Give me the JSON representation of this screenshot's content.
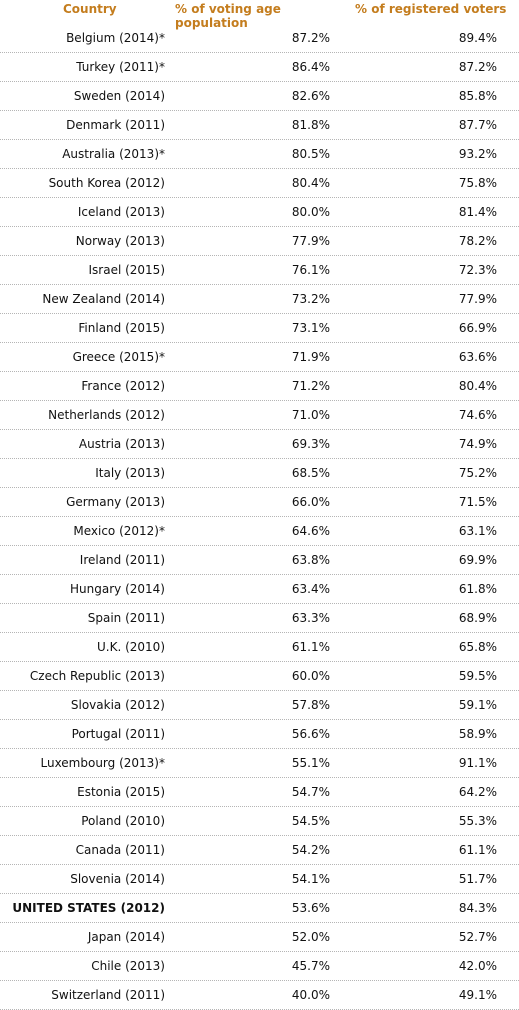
{
  "table": {
    "headers": {
      "country": "Country",
      "vap": "% of voting age population",
      "registered": "% of registered voters"
    },
    "rows": [
      {
        "country": "Belgium (2014)*",
        "vap": "87.2%",
        "registered": "89.4%"
      },
      {
        "country": "Turkey (2011)*",
        "vap": "86.4%",
        "registered": "87.2%"
      },
      {
        "country": "Sweden (2014)",
        "vap": "82.6%",
        "registered": "85.8%"
      },
      {
        "country": "Denmark (2011)",
        "vap": "81.8%",
        "registered": "87.7%"
      },
      {
        "country": "Australia (2013)*",
        "vap": "80.5%",
        "registered": "93.2%"
      },
      {
        "country": "South Korea (2012)",
        "vap": "80.4%",
        "registered": "75.8%"
      },
      {
        "country": "Iceland (2013)",
        "vap": "80.0%",
        "registered": "81.4%"
      },
      {
        "country": "Norway (2013)",
        "vap": "77.9%",
        "registered": "78.2%"
      },
      {
        "country": "Israel (2015)",
        "vap": "76.1%",
        "registered": "72.3%"
      },
      {
        "country": "New Zealand (2014)",
        "vap": "73.2%",
        "registered": "77.9%"
      },
      {
        "country": "Finland (2015)",
        "vap": "73.1%",
        "registered": "66.9%"
      },
      {
        "country": "Greece (2015)*",
        "vap": "71.9%",
        "registered": "63.6%"
      },
      {
        "country": "France (2012)",
        "vap": "71.2%",
        "registered": "80.4%"
      },
      {
        "country": "Netherlands (2012)",
        "vap": "71.0%",
        "registered": "74.6%"
      },
      {
        "country": "Austria (2013)",
        "vap": "69.3%",
        "registered": "74.9%"
      },
      {
        "country": "Italy (2013)",
        "vap": "68.5%",
        "registered": "75.2%"
      },
      {
        "country": "Germany (2013)",
        "vap": "66.0%",
        "registered": "71.5%"
      },
      {
        "country": "Mexico (2012)*",
        "vap": "64.6%",
        "registered": "63.1%"
      },
      {
        "country": "Ireland (2011)",
        "vap": "63.8%",
        "registered": "69.9%"
      },
      {
        "country": "Hungary (2014)",
        "vap": "63.4%",
        "registered": "61.8%"
      },
      {
        "country": "Spain (2011)",
        "vap": "63.3%",
        "registered": "68.9%"
      },
      {
        "country": "U.K. (2010)",
        "vap": "61.1%",
        "registered": "65.8%"
      },
      {
        "country": "Czech Republic (2013)",
        "vap": "60.0%",
        "registered": "59.5%"
      },
      {
        "country": "Slovakia (2012)",
        "vap": "57.8%",
        "registered": "59.1%"
      },
      {
        "country": "Portugal (2011)",
        "vap": "56.6%",
        "registered": "58.9%"
      },
      {
        "country": "Luxembourg (2013)*",
        "vap": "55.1%",
        "registered": "91.1%"
      },
      {
        "country": "Estonia (2015)",
        "vap": "54.7%",
        "registered": "64.2%"
      },
      {
        "country": "Poland (2010)",
        "vap": "54.5%",
        "registered": "55.3%"
      },
      {
        "country": "Canada (2011)",
        "vap": "54.2%",
        "registered": "61.1%"
      },
      {
        "country": "Slovenia (2014)",
        "vap": "54.1%",
        "registered": "51.7%"
      },
      {
        "country": "UNITED STATES (2012)",
        "vap": "53.6%",
        "registered": "84.3%",
        "highlight": true
      },
      {
        "country": "Japan (2014)",
        "vap": "52.0%",
        "registered": "52.7%"
      },
      {
        "country": "Chile (2013)",
        "vap": "45.7%",
        "registered": "42.0%"
      },
      {
        "country": "Switzerland (2011)",
        "vap": "40.0%",
        "registered": "49.1%"
      }
    ]
  },
  "colors": {
    "header_text": "#c47d1e",
    "row_divider": "#b5b5b5"
  }
}
